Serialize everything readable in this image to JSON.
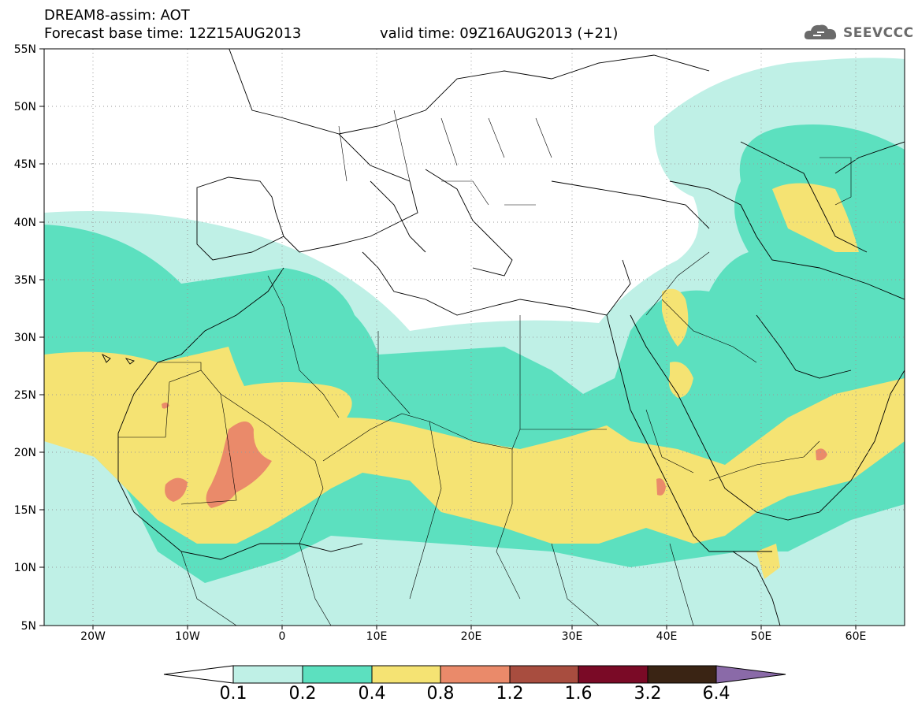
{
  "header": {
    "line1": "DREAM8-assim: AOT",
    "line2": "Forecast base time: 12Z15AUG2013",
    "valid": "valid time: 09Z16AUG2013 (+21)"
  },
  "logo": {
    "text": "SEEVCCC",
    "color": "#6a6a6a"
  },
  "axes": {
    "lat_labels": [
      "55N",
      "50N",
      "45N",
      "40N",
      "35N",
      "30N",
      "25N",
      "20N",
      "15N",
      "10N",
      "5N"
    ],
    "lon_labels": [
      "20W",
      "10W",
      "0",
      "10E",
      "20E",
      "30E",
      "40E",
      "50E",
      "60E"
    ]
  },
  "colorbar": {
    "labels": [
      "0.1",
      "0.2",
      "0.4",
      "0.8",
      "1.2",
      "1.6",
      "3.2",
      "6.4"
    ],
    "colors": [
      "#ffffff",
      "#bff0e6",
      "#5ce0bf",
      "#f5e373",
      "#ea8a6a",
      "#a84d3f",
      "#7a0a26",
      "#3a2414",
      "#8a6aa8"
    ]
  },
  "colors": {
    "aot_0_1": "#bff0e6",
    "aot_0_2": "#5ce0bf",
    "aot_0_4": "#f5e373",
    "aot_0_8": "#ea8a6a"
  }
}
